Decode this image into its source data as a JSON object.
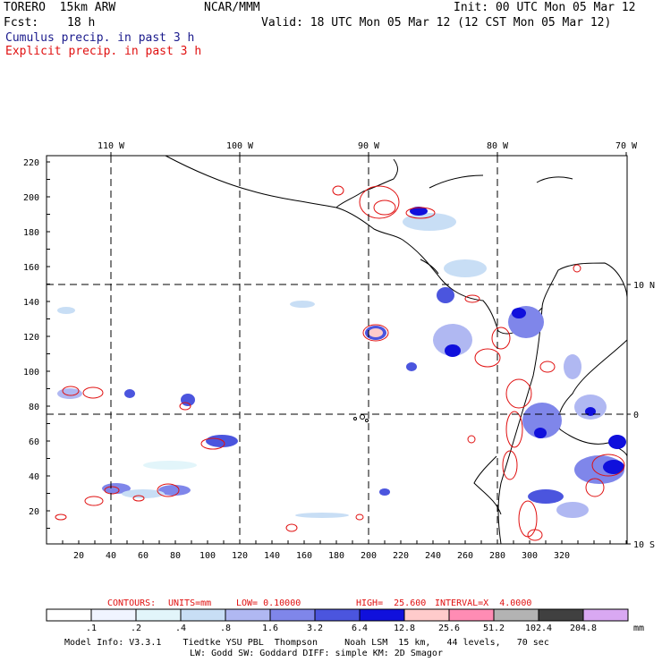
{
  "header": {
    "model": "TORERO  15km ARW",
    "org": "NCAR/MMM",
    "init": "Init: 00 UTC Mon 05 Mar 12",
    "fcst_label": "Fcst:",
    "fcst_value": "18 h",
    "valid": "Valid: 18 UTC Mon 05 Mar 12 (12 CST Mon 05 Mar 12)",
    "legend_cumulus": "Cumulus precip. in past 3 h",
    "legend_explicit": "Explicit precip. in past 3 h"
  },
  "map": {
    "top_lon_labels": [
      "110 W",
      "100 W",
      "90 W",
      "80 W",
      "70 W"
    ],
    "right_lat_labels": [
      "10 N",
      "0",
      "10 S"
    ],
    "x_grid_labels": [
      "20",
      "40",
      "60",
      "80",
      "100",
      "120",
      "140",
      "160",
      "180",
      "200",
      "220",
      "240",
      "260",
      "280",
      "300",
      "320"
    ],
    "y_grid_labels": [
      "220",
      "200",
      "180",
      "160",
      "140",
      "120",
      "100",
      "80",
      "60",
      "40",
      "20"
    ]
  },
  "contours_line": {
    "prefix": "CONTOURS:",
    "units": "UNITS=mm",
    "low": "LOW= 0.10000",
    "high": "HIGH=  25.600",
    "interval": "INTERVAL=X  4.0000"
  },
  "scale": {
    "labels": [
      ".1",
      ".2",
      ".4",
      ".8",
      "1.6",
      "3.2",
      "6.4",
      "12.8",
      "25.6",
      "51.2",
      "102.4",
      "204.8"
    ],
    "unit": "mm",
    "colors": [
      "#ffffff",
      "#f0f4ff",
      "#e2f5fa",
      "#c8def5",
      "#b0b8f2",
      "#7f86ea",
      "#4b55de",
      "#1010dc",
      "#ffcbcb",
      "#ff8cb4",
      "#b3b3b3",
      "#404040",
      "#d9a8f2"
    ]
  },
  "model_info": {
    "line1": "Model Info: V3.3.1    Tiedtke YSU PBL  Thompson     Noah LSM  15 km,   44 levels,   70 sec",
    "line2": "LW: Godd SW: Goddard DIFF: simple KM: 2D Smagor"
  }
}
